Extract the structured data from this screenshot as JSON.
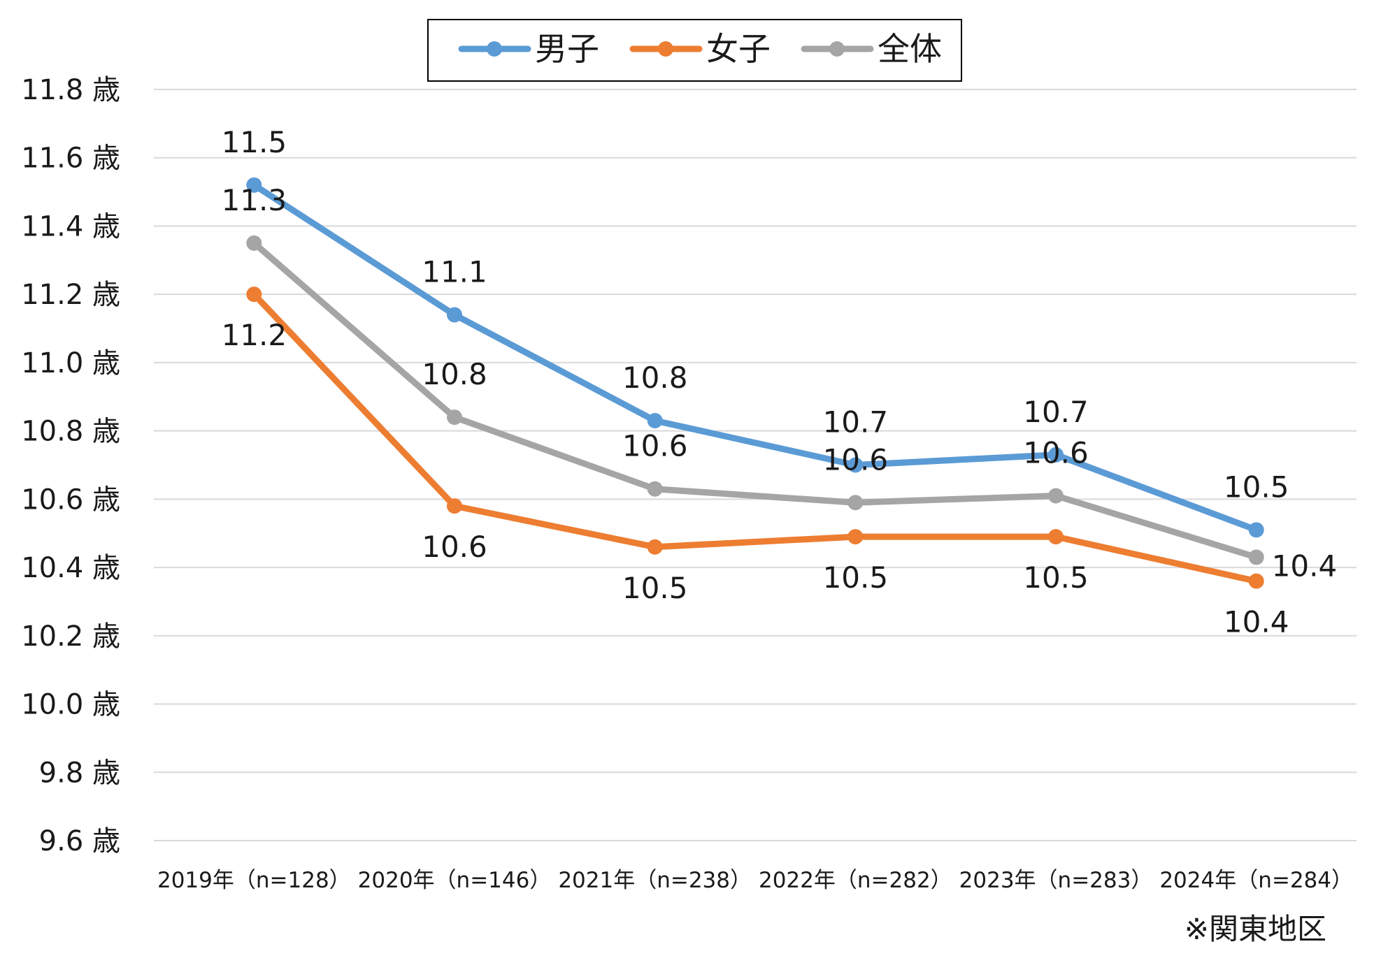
{
  "chart_data": {
    "type": "line",
    "categories": [
      "2019年（n=128）",
      "2020年（n=146）",
      "2021年（n=238）",
      "2022年（n=282）",
      "2023年（n=283）",
      "2024年（n=284）"
    ],
    "series": [
      {
        "name": "男子",
        "color": "#5B9BD5",
        "values": [
          11.52,
          11.14,
          10.83,
          10.7,
          10.73,
          10.51
        ],
        "labels": [
          "11.5",
          "11.1",
          "10.8",
          "10.7",
          "10.7",
          "10.5"
        ]
      },
      {
        "name": "女子",
        "color": "#ED7D31",
        "values": [
          11.2,
          10.58,
          10.46,
          10.49,
          10.49,
          10.36
        ],
        "labels": [
          "11.2",
          "10.6",
          "10.5",
          "10.5",
          "10.5",
          "10.4"
        ]
      },
      {
        "name": "全体",
        "color": "#A5A5A5",
        "values": [
          11.35,
          10.84,
          10.63,
          10.59,
          10.61,
          10.43
        ],
        "labels": [
          "11.3",
          "10.8",
          "10.6",
          "10.6",
          "10.6",
          "10.4"
        ]
      }
    ],
    "yticks": [
      "11.8 歳",
      "11.6 歳",
      "11.4 歳",
      "11.2 歳",
      "11.0 歳",
      "10.8 歳",
      "10.6 歳",
      "10.4 歳",
      "10.2 歳",
      "10.0 歳",
      "9.8 歳",
      "9.6 歳"
    ],
    "ylim": [
      9.6,
      11.8
    ],
    "ystep": 0.2,
    "grid": true,
    "legend": "top-center",
    "footnote": "※関東地区"
  }
}
